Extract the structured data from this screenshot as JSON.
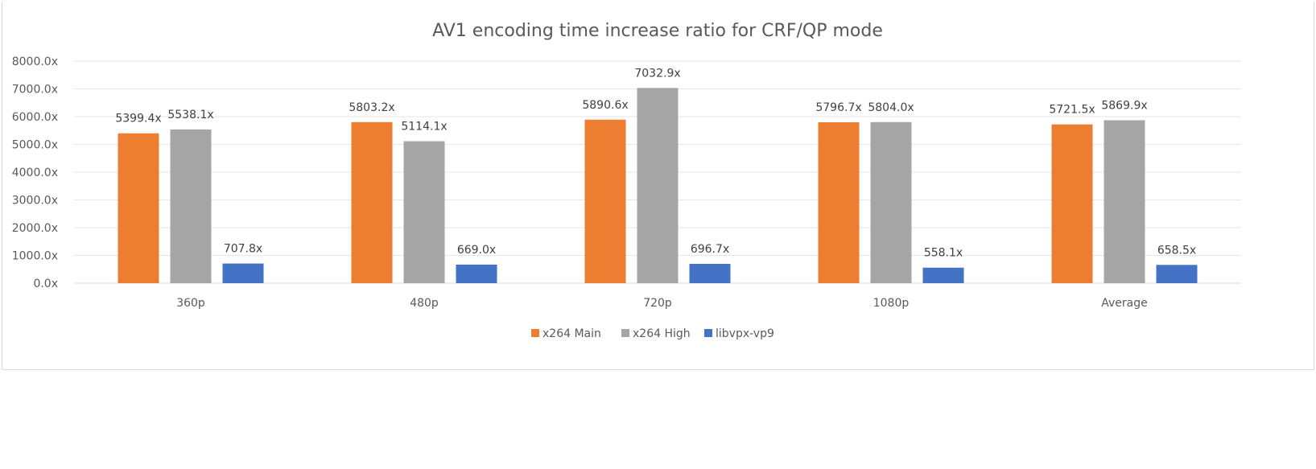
{
  "chart_data": {
    "type": "bar",
    "title": "AV1 encoding time increase ratio for CRF/QP mode",
    "xlabel": "",
    "ylabel": "",
    "ylim": [
      0,
      8000
    ],
    "yticks": [
      0,
      1000,
      2000,
      3000,
      4000,
      5000,
      6000,
      7000,
      8000
    ],
    "ytick_labels": [
      "0.0x",
      "1000.0x",
      "2000.0x",
      "3000.0x",
      "4000.0x",
      "5000.0x",
      "6000.0x",
      "7000.0x",
      "8000.0x"
    ],
    "grid": true,
    "legend_position": "bottom",
    "categories": [
      "360p",
      "480p",
      "720p",
      "1080p",
      "Average"
    ],
    "series": [
      {
        "name": "x264 Main",
        "color": "#ED7D31",
        "values": [
          5399.4,
          5803.2,
          5890.6,
          5796.7,
          5721.5
        ],
        "labels": [
          "5399.4x",
          "5803.2x",
          "5890.6x",
          "5796.7x",
          "5721.5x"
        ]
      },
      {
        "name": "x264 High",
        "color": "#A5A5A5",
        "values": [
          5538.1,
          5114.1,
          7032.9,
          5804.0,
          5869.9
        ],
        "labels": [
          "5538.1x",
          "5114.1x",
          "7032.9x",
          "5804.0x",
          "5869.9x"
        ]
      },
      {
        "name": "libvpx-vp9",
        "color": "#4472C4",
        "values": [
          707.8,
          669.0,
          696.7,
          558.1,
          658.5
        ],
        "labels": [
          "707.8x",
          "669.0x",
          "696.7x",
          "558.1x",
          "658.5x"
        ]
      }
    ]
  }
}
